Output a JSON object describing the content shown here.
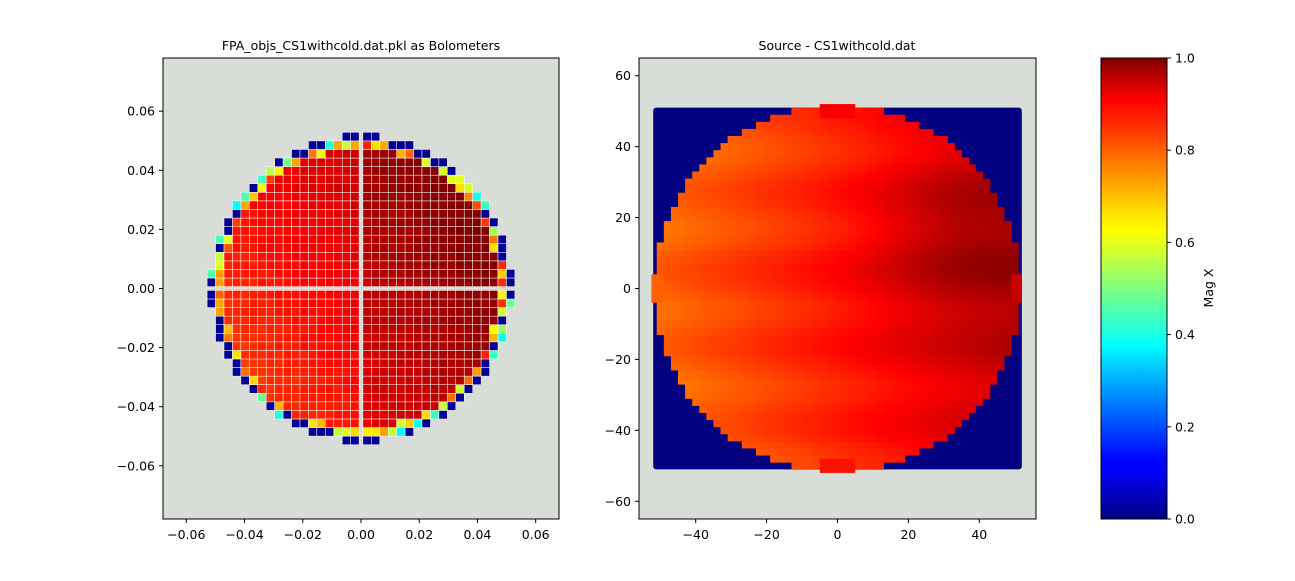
{
  "chart_data": [
    {
      "type": "heatmap",
      "title": "FPA_objs_CS1withcold.dat.pkl as Bolometers",
      "xlabel": "",
      "ylabel": "",
      "xlim": [
        -0.068,
        0.068
      ],
      "ylim": [
        -0.078,
        0.078
      ],
      "xticks": [
        -0.06,
        -0.04,
        -0.02,
        0.0,
        0.02,
        0.04,
        0.06
      ],
      "yticks": [
        -0.06,
        -0.04,
        -0.02,
        0.0,
        0.02,
        0.04,
        0.06
      ],
      "xtick_labels": [
        "−0.06",
        "−0.04",
        "−0.02",
        "0.00",
        "0.02",
        "0.04",
        "0.06"
      ],
      "ytick_labels": [
        "−0.06",
        "−0.04",
        "−0.02",
        "0.00",
        "0.02",
        "0.04",
        "0.06"
      ],
      "grid": false,
      "background_color": "#d8ddd8",
      "array_radius": 0.052,
      "pixel_pitch": 0.0029,
      "values_description": "square pixel array inside circle of radius ~0.052; values ~0.8 left to ~0.97 upper right; edge pixels low (0.0–0.5)"
    },
    {
      "type": "heatmap",
      "title": "Source - CS1withcold.dat",
      "xlabel": "",
      "ylabel": "",
      "xlim": [
        -56,
        56
      ],
      "ylim": [
        -65,
        65
      ],
      "xticks": [
        -40,
        -20,
        0,
        20,
        40
      ],
      "yticks": [
        -60,
        -40,
        -20,
        0,
        20,
        40,
        60
      ],
      "xtick_labels": [
        "−40",
        "−20",
        "0",
        "20",
        "40"
      ],
      "ytick_labels": [
        "−60",
        "−40",
        "−20",
        "0",
        "20",
        "40",
        "60"
      ],
      "grid": false,
      "background_color": "#d8ddd8",
      "square_extent": [
        -52,
        52,
        -51,
        51
      ],
      "disk_radius": 51,
      "values_description": "square of value 0 with inscribed disk of values ~0.78 (left) to ~0.98 (right, y~15)"
    }
  ],
  "colorbar": {
    "label": "Mag X",
    "colormap": "jet",
    "vmin": 0.0,
    "vmax": 1.0,
    "ticks": [
      0.0,
      0.2,
      0.4,
      0.6,
      0.8,
      1.0
    ],
    "tick_labels": [
      "0.0",
      "0.2",
      "0.4",
      "0.6",
      "0.8",
      "1.0"
    ]
  }
}
